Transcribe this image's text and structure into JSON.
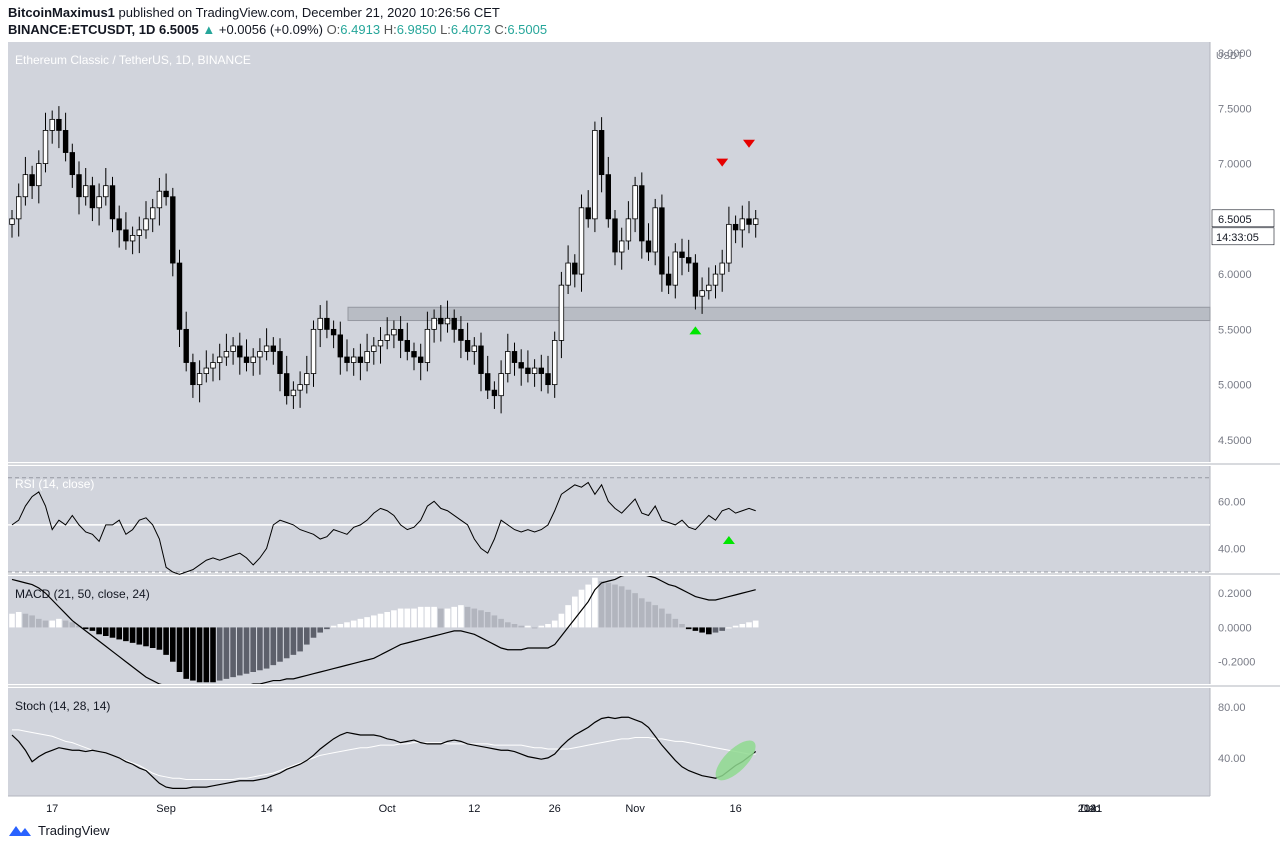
{
  "header": {
    "author": "BitcoinMaximus1",
    "published_text": "published on TradingView.com, December 21, 2020 10:26:56 CET",
    "symbol": "BINANCE:ETCUSDT, 1D",
    "last": "6.5005",
    "change": "+0.0056 (+0.09%)",
    "o_label": "O:",
    "o_value": "6.4913",
    "h_label": "H:",
    "h_value": "6.9850",
    "l_label": "L:",
    "l_value": "6.4073",
    "c_label": "C:",
    "c_value": "6.5005"
  },
  "footer": {
    "brand": "TradingView"
  },
  "colors": {
    "pane_bg": "#d1d4dc",
    "candle_up": "#ffffff",
    "candle_down": "#000000",
    "arrow_up": "#00e600",
    "arrow_down": "#e60000",
    "stoch_highlight": "#8fd98f"
  },
  "chart_data": [
    {
      "type": "candlestick",
      "title": "Ethereum Classic / TetherUS, 1D, BINANCE",
      "currency_label": "USDT",
      "y_ticks": [
        "8.0000",
        "7.5000",
        "7.0000",
        "6.5000",
        "6.0000",
        "5.5000",
        "5.0000",
        "4.5000"
      ],
      "last_price_label": "6.5005",
      "countdown_label": "14:33:05",
      "ylim": [
        4.3,
        8.1
      ],
      "x_tick_labels": [
        "17",
        "Sep",
        "14",
        "Oct",
        "12",
        "26",
        "Nov",
        "16",
        "Dec",
        "14",
        "2021"
      ],
      "support_zone": [
        5.58,
        5.7
      ],
      "closes": [
        6.5,
        6.7,
        6.9,
        6.8,
        7.0,
        7.3,
        7.4,
        7.3,
        7.1,
        6.9,
        6.7,
        6.8,
        6.6,
        6.7,
        6.8,
        6.5,
        6.4,
        6.3,
        6.35,
        6.4,
        6.5,
        6.6,
        6.75,
        6.7,
        6.1,
        5.5,
        5.2,
        5.0,
        5.1,
        5.15,
        5.2,
        5.25,
        5.3,
        5.35,
        5.25,
        5.2,
        5.25,
        5.3,
        5.35,
        5.3,
        5.1,
        4.9,
        4.95,
        5.0,
        5.1,
        5.5,
        5.6,
        5.5,
        5.45,
        5.25,
        5.2,
        5.25,
        5.2,
        5.3,
        5.35,
        5.4,
        5.45,
        5.5,
        5.4,
        5.3,
        5.25,
        5.2,
        5.5,
        5.6,
        5.55,
        5.6,
        5.5,
        5.4,
        5.3,
        5.35,
        5.1,
        4.95,
        4.9,
        5.1,
        5.3,
        5.2,
        5.15,
        5.1,
        5.15,
        5.1,
        5.0,
        5.4,
        5.9,
        6.1,
        6.0,
        6.6,
        6.5,
        7.3,
        6.9,
        6.5,
        6.2,
        6.3,
        6.5,
        6.8,
        6.3,
        6.2,
        6.6,
        6.0,
        5.9,
        6.2,
        6.15,
        6.1,
        5.8,
        5.85,
        5.9,
        6.0,
        6.1,
        6.45,
        6.4,
        6.5,
        6.45,
        6.5
      ],
      "events": [
        {
          "kind": "up",
          "bar": 102,
          "value": 5.5
        },
        {
          "kind": "down",
          "bar": 106,
          "value": 7.0
        },
        {
          "kind": "down",
          "bar": 110,
          "value": 7.17
        }
      ]
    },
    {
      "type": "line",
      "title": "RSI (14, close)",
      "y_ticks": [
        "60.00",
        "40.00"
      ],
      "ylim": [
        30,
        75
      ],
      "levels": [
        70,
        50,
        30
      ],
      "values": [
        50,
        52,
        58,
        62,
        64,
        58,
        48,
        52,
        50,
        54,
        50,
        47,
        46,
        43,
        50,
        50,
        52,
        46,
        48,
        52,
        53,
        50,
        44,
        32,
        30,
        29,
        30,
        31,
        33,
        35,
        36,
        35,
        36,
        37,
        38,
        36,
        33,
        36,
        40,
        50,
        52,
        51,
        50,
        48,
        47,
        46,
        44,
        45,
        48,
        47,
        46,
        49,
        50,
        52,
        55,
        57,
        56,
        54,
        50,
        48,
        49,
        52,
        58,
        60,
        57,
        56,
        54,
        52,
        50,
        44,
        40,
        38,
        44,
        52,
        50,
        48,
        47,
        48,
        47,
        48,
        50,
        56,
        63,
        65,
        67,
        66,
        68,
        63,
        67,
        60,
        57,
        55,
        58,
        61,
        55,
        54,
        58,
        52,
        51,
        50,
        52,
        49,
        48,
        51,
        54,
        52,
        56,
        57,
        55,
        56,
        57,
        56
      ],
      "events": [
        {
          "kind": "up",
          "bar": 107,
          "value": 44
        }
      ]
    },
    {
      "type": "macd",
      "title": "MACD (21, 50, close, 24)",
      "y_ticks": [
        "0.2000",
        "0.0000",
        "-0.2000"
      ],
      "ylim": [
        -0.33,
        0.3
      ],
      "macd_line": [
        0.28,
        0.27,
        0.26,
        0.25,
        0.23,
        0.2,
        0.16,
        0.12,
        0.08,
        0.04,
        0.01,
        -0.02,
        -0.05,
        -0.08,
        -0.11,
        -0.14,
        -0.17,
        -0.2,
        -0.23,
        -0.26,
        -0.29,
        -0.31,
        -0.33,
        -0.34,
        -0.35,
        -0.36,
        -0.36,
        -0.36,
        -0.36,
        -0.36,
        -0.35,
        -0.35,
        -0.35,
        -0.35,
        -0.34,
        -0.34,
        -0.33,
        -0.33,
        -0.32,
        -0.31,
        -0.31,
        -0.3,
        -0.3,
        -0.29,
        -0.28,
        -0.27,
        -0.26,
        -0.25,
        -0.24,
        -0.23,
        -0.22,
        -0.21,
        -0.2,
        -0.19,
        -0.18,
        -0.16,
        -0.14,
        -0.12,
        -0.1,
        -0.09,
        -0.08,
        -0.07,
        -0.06,
        -0.05,
        -0.04,
        -0.03,
        -0.02,
        -0.02,
        -0.03,
        -0.04,
        -0.06,
        -0.08,
        -0.1,
        -0.12,
        -0.13,
        -0.13,
        -0.13,
        -0.12,
        -0.12,
        -0.12,
        -0.12,
        -0.1,
        -0.05,
        0.0,
        0.05,
        0.1,
        0.15,
        0.22,
        0.26,
        0.27,
        0.28,
        0.3,
        0.31,
        0.32,
        0.31,
        0.3,
        0.29,
        0.27,
        0.25,
        0.24,
        0.22,
        0.2,
        0.18,
        0.17,
        0.16,
        0.16,
        0.17,
        0.18,
        0.19,
        0.2,
        0.21,
        0.22
      ],
      "histogram": [
        0.08,
        0.09,
        0.08,
        0.07,
        0.05,
        0.04,
        0.04,
        0.05,
        0.04,
        0.03,
        0.01,
        -0.01,
        -0.02,
        -0.04,
        -0.05,
        -0.06,
        -0.07,
        -0.08,
        -0.09,
        -0.1,
        -0.11,
        -0.12,
        -0.13,
        -0.16,
        -0.2,
        -0.26,
        -0.3,
        -0.31,
        -0.32,
        -0.32,
        -0.32,
        -0.31,
        -0.3,
        -0.29,
        -0.28,
        -0.27,
        -0.26,
        -0.25,
        -0.24,
        -0.22,
        -0.2,
        -0.18,
        -0.16,
        -0.14,
        -0.1,
        -0.06,
        -0.03,
        -0.01,
        0.01,
        0.02,
        0.03,
        0.04,
        0.05,
        0.06,
        0.07,
        0.08,
        0.09,
        0.1,
        0.11,
        0.11,
        0.11,
        0.12,
        0.12,
        0.12,
        0.11,
        0.11,
        0.12,
        0.13,
        0.12,
        0.11,
        0.1,
        0.09,
        0.07,
        0.05,
        0.03,
        0.02,
        0.01,
        0.01,
        0.0,
        0.01,
        0.02,
        0.04,
        0.08,
        0.13,
        0.18,
        0.22,
        0.25,
        0.29,
        0.27,
        0.26,
        0.25,
        0.24,
        0.22,
        0.2,
        0.17,
        0.15,
        0.13,
        0.11,
        0.08,
        0.05,
        0.02,
        -0.01,
        -0.02,
        -0.03,
        -0.04,
        -0.03,
        -0.02,
        0.0,
        0.01,
        0.02,
        0.03,
        0.04
      ]
    },
    {
      "type": "line",
      "title": "Stoch (14, 28, 14)",
      "y_ticks": [
        "80.00",
        "40.00"
      ],
      "ylim": [
        10,
        95
      ],
      "k_line": [
        58,
        53,
        46,
        37,
        41,
        44,
        46,
        48,
        47,
        46,
        46,
        45,
        46,
        45,
        44,
        42,
        40,
        37,
        35,
        32,
        30,
        25,
        20,
        17,
        16,
        16,
        16,
        17,
        17,
        17,
        18,
        19,
        20,
        21,
        22,
        22,
        22,
        23,
        24,
        26,
        28,
        31,
        33,
        35,
        38,
        42,
        47,
        51,
        55,
        58,
        60,
        59,
        58,
        58,
        58,
        57,
        55,
        54,
        52,
        53,
        54,
        52,
        51,
        51,
        51,
        53,
        54,
        53,
        51,
        50,
        49,
        48,
        47,
        46,
        46,
        45,
        43,
        41,
        40,
        39,
        40,
        43,
        49,
        54,
        58,
        61,
        64,
        68,
        71,
        72,
        71,
        72,
        72,
        70,
        68,
        64,
        57,
        50,
        44,
        38,
        33,
        30,
        28,
        26,
        25,
        24,
        26,
        30,
        34,
        37,
        41,
        45
      ],
      "d_line": [
        62,
        62,
        61,
        60,
        59,
        58,
        57,
        55,
        53,
        52,
        50,
        48,
        46,
        45,
        44,
        42,
        40,
        38,
        36,
        34,
        31,
        28,
        26,
        25,
        24,
        24,
        23,
        23,
        23,
        23,
        23,
        23,
        23,
        23,
        24,
        24,
        25,
        26,
        27,
        28,
        30,
        32,
        34,
        36,
        38,
        40,
        42,
        43,
        44,
        45,
        46,
        47,
        48,
        48,
        49,
        50,
        50,
        50,
        51,
        51,
        52,
        52,
        52,
        52,
        52,
        51,
        51,
        51,
        51,
        51,
        51,
        51,
        50,
        50,
        50,
        50,
        50,
        49,
        48,
        48,
        47,
        47,
        47,
        47,
        48,
        49,
        50,
        51,
        52,
        53,
        54,
        55,
        55,
        56,
        56,
        56,
        55,
        55,
        54,
        53,
        53,
        52,
        51,
        50,
        49,
        48,
        47,
        46,
        45,
        44,
        43,
        43
      ]
    }
  ]
}
